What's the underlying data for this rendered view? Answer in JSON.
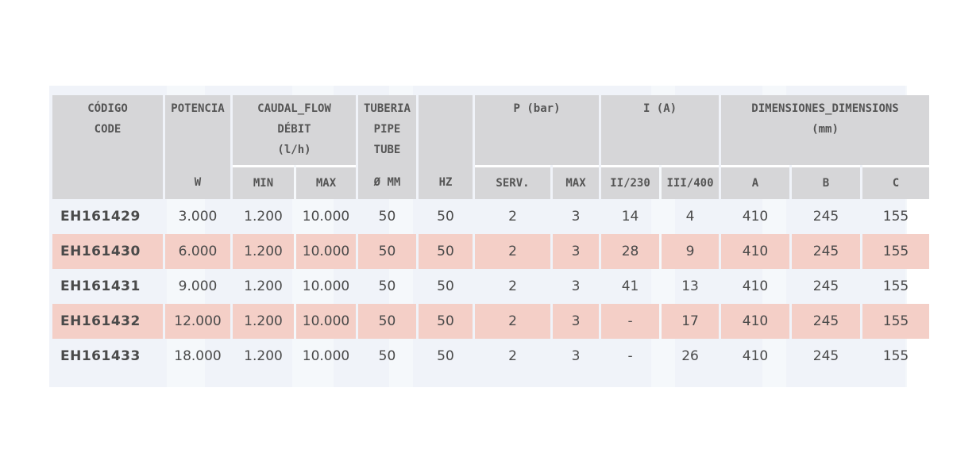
{
  "header": {
    "codigo_es": "CÓDIGO",
    "codigo_en": "CODE",
    "potencia": "POTENCIA",
    "potencia_unit": "W",
    "caudal": "CAUDAL_FLOW",
    "debit": "DÉBIT",
    "caudal_unit": "(l/h)",
    "caudal_min": "MIN",
    "caudal_max": "MAX",
    "tuberia": "TUBERIA",
    "pipe": "PIPE",
    "tube": "TUBE",
    "tuberia_unit": "Ø MM",
    "hz": "HZ",
    "pbar": "P (bar)",
    "pbar_serv": "SERV.",
    "pbar_max": "MAX",
    "ia": "I (A)",
    "ia_230": "II/230",
    "ia_400": "III/400",
    "dim": "DIMENSIONES_DIMENSIONS",
    "dim_unit": "(mm)",
    "dim_a": "A",
    "dim_b": "B",
    "dim_c": "C"
  },
  "rows": [
    {
      "code": "EH161429",
      "potencia": "3.000",
      "min": "1.200",
      "max": "10.000",
      "pipe": "50",
      "hz": "50",
      "serv": "2",
      "pmax": "3",
      "i230": "14",
      "i400": "4",
      "a": "410",
      "b": "245",
      "c": "155"
    },
    {
      "code": "EH161430",
      "potencia": "6.000",
      "min": "1.200",
      "max": "10.000",
      "pipe": "50",
      "hz": "50",
      "serv": "2",
      "pmax": "3",
      "i230": "28",
      "i400": "9",
      "a": "410",
      "b": "245",
      "c": "155"
    },
    {
      "code": "EH161431",
      "potencia": "9.000",
      "min": "1.200",
      "max": "10.000",
      "pipe": "50",
      "hz": "50",
      "serv": "2",
      "pmax": "3",
      "i230": "41",
      "i400": "13",
      "a": "410",
      "b": "245",
      "c": "155"
    },
    {
      "code": "EH161432",
      "potencia": "12.000",
      "min": "1.200",
      "max": "10.000",
      "pipe": "50",
      "hz": "50",
      "serv": "2",
      "pmax": "3",
      "i230": "-",
      "i400": "17",
      "a": "410",
      "b": "245",
      "c": "155"
    },
    {
      "code": "EH161433",
      "potencia": "18.000",
      "min": "1.200",
      "max": "10.000",
      "pipe": "50",
      "hz": "50",
      "serv": "2",
      "pmax": "3",
      "i230": "-",
      "i400": "26",
      "a": "410",
      "b": "245",
      "c": "155"
    }
  ],
  "colors": {
    "header_bg": "#d6d6d8",
    "highlight_row": "#f4cfc7",
    "text": "#4a4a4a"
  }
}
